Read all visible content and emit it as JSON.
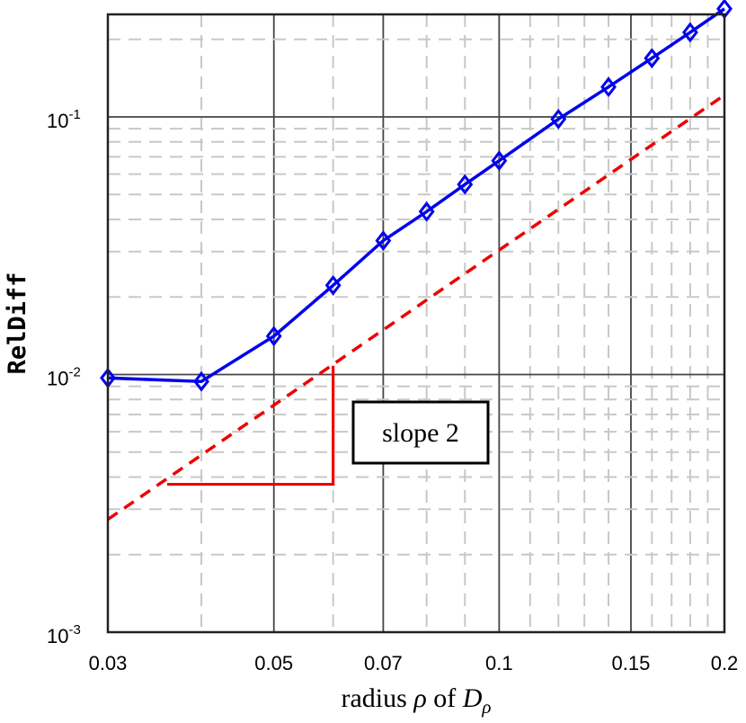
{
  "chart_data": {
    "type": "line",
    "title": "",
    "xlabel": {
      "pre": "radius ",
      "rho": "ρ",
      "of": " of ",
      "D": "D",
      "sub": "ρ"
    },
    "ylabel": "RelDiff",
    "xscale": "log",
    "yscale": "log",
    "xlim": [
      0.03,
      0.2
    ],
    "ylim": [
      0.001,
      0.25
    ],
    "grid": true,
    "x_ticks": [
      {
        "value": 0.03,
        "label": "0.03"
      },
      {
        "value": 0.05,
        "label": "0.05"
      },
      {
        "value": 0.07,
        "label": "0.07"
      },
      {
        "value": 0.1,
        "label": "0.1"
      },
      {
        "value": 0.15,
        "label": "0.15"
      },
      {
        "value": 0.2,
        "label": "0.2"
      }
    ],
    "y_ticks": [
      {
        "value": 0.001,
        "base": "10",
        "exp": "-3"
      },
      {
        "value": 0.01,
        "base": "10",
        "exp": "-2"
      },
      {
        "value": 0.1,
        "base": "10",
        "exp": "-1"
      }
    ],
    "series": [
      {
        "color": "#0000ee",
        "marker": "diamond",
        "x": [
          0.03,
          0.04,
          0.05,
          0.06,
          0.07,
          0.08,
          0.09,
          0.1,
          0.12,
          0.14,
          0.16,
          0.18,
          0.2
        ],
        "y": [
          0.0097,
          0.0094,
          0.0141,
          0.0222,
          0.0331,
          0.0429,
          0.0547,
          0.0676,
          0.0981,
          0.1307,
          0.169,
          0.2129,
          0.2628
        ]
      },
      {
        "color": "#ee0000",
        "style": "dashed",
        "x": [
          0.03,
          0.2
        ],
        "y": [
          0.00274,
          0.1216
        ]
      }
    ],
    "slope_triangle": {
      "color": "#ee0000",
      "x": [
        0.036,
        0.06
      ],
      "y": [
        0.00375,
        0.0108
      ],
      "label": "slope 2"
    }
  }
}
